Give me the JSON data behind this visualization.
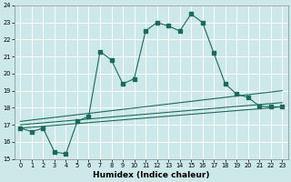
{
  "title": "",
  "xlabel": "Humidex (Indice chaleur)",
  "bg_color": "#cce8e8",
  "grid_color": "#ffffff",
  "line_color": "#1a6b5a",
  "xlim": [
    -0.5,
    23.5
  ],
  "ylim": [
    15,
    24
  ],
  "xticks": [
    0,
    1,
    2,
    3,
    4,
    5,
    6,
    7,
    8,
    9,
    10,
    11,
    12,
    13,
    14,
    15,
    16,
    17,
    18,
    19,
    20,
    21,
    22,
    23
  ],
  "yticks": [
    15,
    16,
    17,
    18,
    19,
    20,
    21,
    22,
    23,
    24
  ],
  "main_x": [
    0,
    1,
    2,
    3,
    4,
    5,
    6,
    7,
    8,
    9,
    10,
    11,
    12,
    13,
    14,
    15,
    16,
    17,
    18,
    19,
    20,
    21,
    22,
    23
  ],
  "main_y": [
    16.8,
    16.6,
    16.8,
    15.4,
    15.3,
    17.2,
    17.5,
    21.3,
    20.8,
    19.4,
    19.7,
    22.5,
    23.0,
    22.8,
    22.5,
    23.5,
    23.0,
    21.2,
    19.4,
    18.8,
    18.6,
    18.1,
    18.05,
    18.05
  ],
  "line1_x": [
    0,
    23
  ],
  "line1_y": [
    16.8,
    18.05
  ],
  "line2_x": [
    0,
    23
  ],
  "line2_y": [
    17.0,
    18.3
  ],
  "line3_x": [
    0,
    23
  ],
  "line3_y": [
    17.2,
    19.0
  ]
}
